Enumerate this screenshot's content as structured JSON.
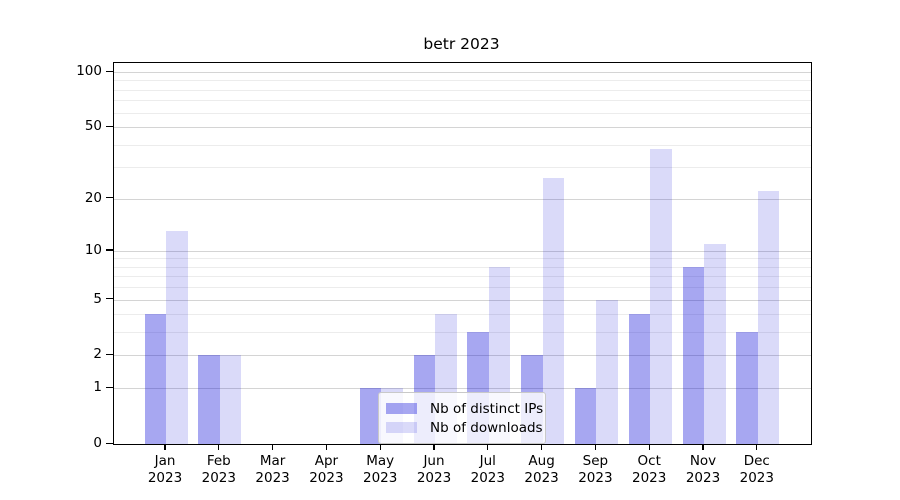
{
  "chart_data": {
    "type": "bar",
    "title": "betr 2023",
    "categories": [
      "Jan",
      "Feb",
      "Mar",
      "Apr",
      "May",
      "Jun",
      "Jul",
      "Aug",
      "Sep",
      "Oct",
      "Nov",
      "Dec"
    ],
    "year": "2023",
    "series": [
      {
        "name": "Nb of distinct IPs",
        "color": "rgba(10,10,215,0.36)",
        "values": [
          4,
          2,
          0,
          0,
          1,
          2,
          3,
          2,
          1,
          4,
          8,
          3
        ]
      },
      {
        "name": "Nb of downloads",
        "color": "rgba(10,10,215,0.15)",
        "values": [
          13,
          2,
          0,
          0,
          1,
          4,
          8,
          26,
          5,
          38,
          11,
          22
        ]
      }
    ],
    "xlabel": "",
    "ylabel": "",
    "yscale": "log1p",
    "ylim": [
      0,
      112
    ],
    "yticks": {
      "values": [
        0,
        1,
        2,
        5,
        10,
        20,
        50,
        100
      ],
      "labels": [
        "0",
        "1",
        "2",
        "5",
        "10",
        "20",
        "50",
        "100"
      ]
    },
    "minor_yticks": [
      3,
      4,
      6,
      7,
      8,
      9,
      30,
      40,
      60,
      70,
      80,
      90
    ],
    "grid": {
      "major_color": "#d4d4d4",
      "minor_color": "#ececec",
      "grid_on": true
    },
    "legend": {
      "position": "lower center",
      "frame": true
    }
  }
}
